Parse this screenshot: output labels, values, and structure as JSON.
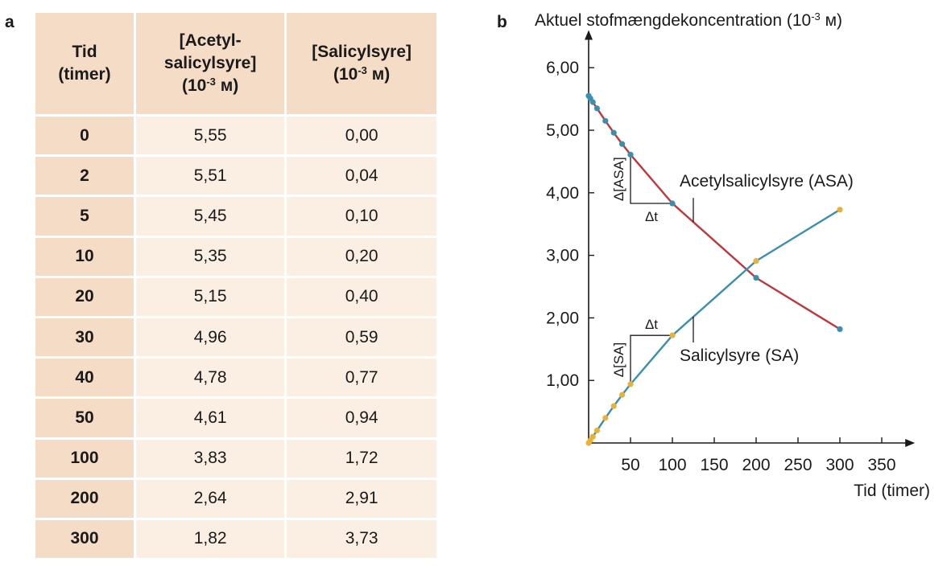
{
  "panel_a": {
    "letter": "a",
    "headers": [
      [
        "Tid",
        "(timer)"
      ],
      [
        "[Acetyl-",
        "salicylsyre]",
        "(10",
        "-3",
        " м)"
      ],
      [
        "[Salicylsyre]",
        "(10",
        "-3",
        " м)"
      ]
    ],
    "rows": [
      [
        "0",
        "5,55",
        "0,00"
      ],
      [
        "2",
        "5,51",
        "0,04"
      ],
      [
        "5",
        "5,45",
        "0,10"
      ],
      [
        "10",
        "5,35",
        "0,20"
      ],
      [
        "20",
        "5,15",
        "0,40"
      ],
      [
        "30",
        "4,96",
        "0,59"
      ],
      [
        "40",
        "4,78",
        "0,77"
      ],
      [
        "50",
        "4,61",
        "0,94"
      ],
      [
        "100",
        "3,83",
        "1,72"
      ],
      [
        "200",
        "2,64",
        "2,91"
      ],
      [
        "300",
        "1,82",
        "3,73"
      ]
    ]
  },
  "panel_b": {
    "letter": "b"
  },
  "chart_data": {
    "type": "line",
    "title": "Aktuel stofmængdekoncentration (10",
    "title_exp": "-3",
    "title_unit": " м)",
    "xlabel": "Tid (timer)",
    "xlim": [
      0,
      380
    ],
    "ylim": [
      0,
      6.6
    ],
    "x_ticks": [
      50,
      100,
      150,
      200,
      250,
      300,
      350
    ],
    "x_tick_labels": [
      "50",
      "100",
      "150",
      "200",
      "250",
      "300",
      "350"
    ],
    "y_ticks": [
      1,
      2,
      3,
      4,
      5,
      6
    ],
    "y_tick_labels": [
      "1,00",
      "2,00",
      "3,00",
      "4,00",
      "5,00",
      "6,00"
    ],
    "x": [
      0,
      2,
      5,
      10,
      20,
      30,
      40,
      50,
      100,
      200,
      300
    ],
    "series": [
      {
        "name": "Acetylsalicylsyre (ASA)",
        "line_color": "#c0373b",
        "marker_color": "#3a8fb0",
        "values": [
          5.55,
          5.51,
          5.45,
          5.35,
          5.15,
          4.96,
          4.78,
          4.61,
          3.83,
          2.64,
          1.82
        ]
      },
      {
        "name": "Salicylsyre (SA)",
        "line_color": "#3a8fb0",
        "marker_color": "#e8b23a",
        "values": [
          0.0,
          0.04,
          0.1,
          0.2,
          0.4,
          0.59,
          0.77,
          0.94,
          1.72,
          2.91,
          3.73
        ]
      }
    ],
    "annotations": {
      "asa_delta_y": "Δ[ASA]",
      "asa_delta_x": "Δt",
      "sa_delta_y": "Δ[SA]",
      "sa_delta_x": "Δt"
    }
  }
}
